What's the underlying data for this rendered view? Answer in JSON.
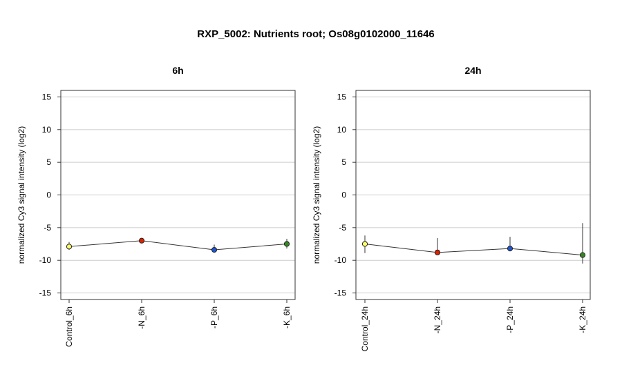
{
  "title": "RXP_5002: Nutrients root; Os08g0102000_11646",
  "chart_data": [
    {
      "type": "line",
      "title": "6h",
      "xlabel": "",
      "ylabel": "normalized Cy3 signal intensity (log2)",
      "ylim": [
        -16,
        16
      ],
      "yticks": [
        15,
        10,
        5,
        0,
        -5,
        -10,
        -15
      ],
      "grid": true,
      "categories": [
        "Control_6h",
        "-N_6h",
        "-P_6h",
        "-K_6h"
      ],
      "values": [
        -7.9,
        -7.0,
        -8.4,
        -7.5
      ],
      "err_low": [
        -8.4,
        -7.2,
        -8.8,
        -8.2
      ],
      "err_high": [
        -7.2,
        -6.8,
        -7.6,
        -6.7
      ],
      "colors": [
        "#ffff66",
        "#dd2200",
        "#2255cc",
        "#338822"
      ]
    },
    {
      "type": "line",
      "title": "24h",
      "xlabel": "",
      "ylabel": "normalized Cy3 signal intensity (log2)",
      "ylim": [
        -16,
        16
      ],
      "yticks": [
        15,
        10,
        5,
        0,
        -5,
        -10,
        -15
      ],
      "grid": true,
      "categories": [
        "Control_24h",
        "-N_24h",
        "-P_24h",
        "-K_24h"
      ],
      "values": [
        -7.5,
        -8.8,
        -8.2,
        -9.2
      ],
      "err_low": [
        -8.9,
        -9.0,
        -8.5,
        -10.5
      ],
      "err_high": [
        -6.2,
        -6.6,
        -6.4,
        -4.3
      ],
      "colors": [
        "#ffff66",
        "#dd2200",
        "#2255cc",
        "#338822"
      ]
    }
  ]
}
